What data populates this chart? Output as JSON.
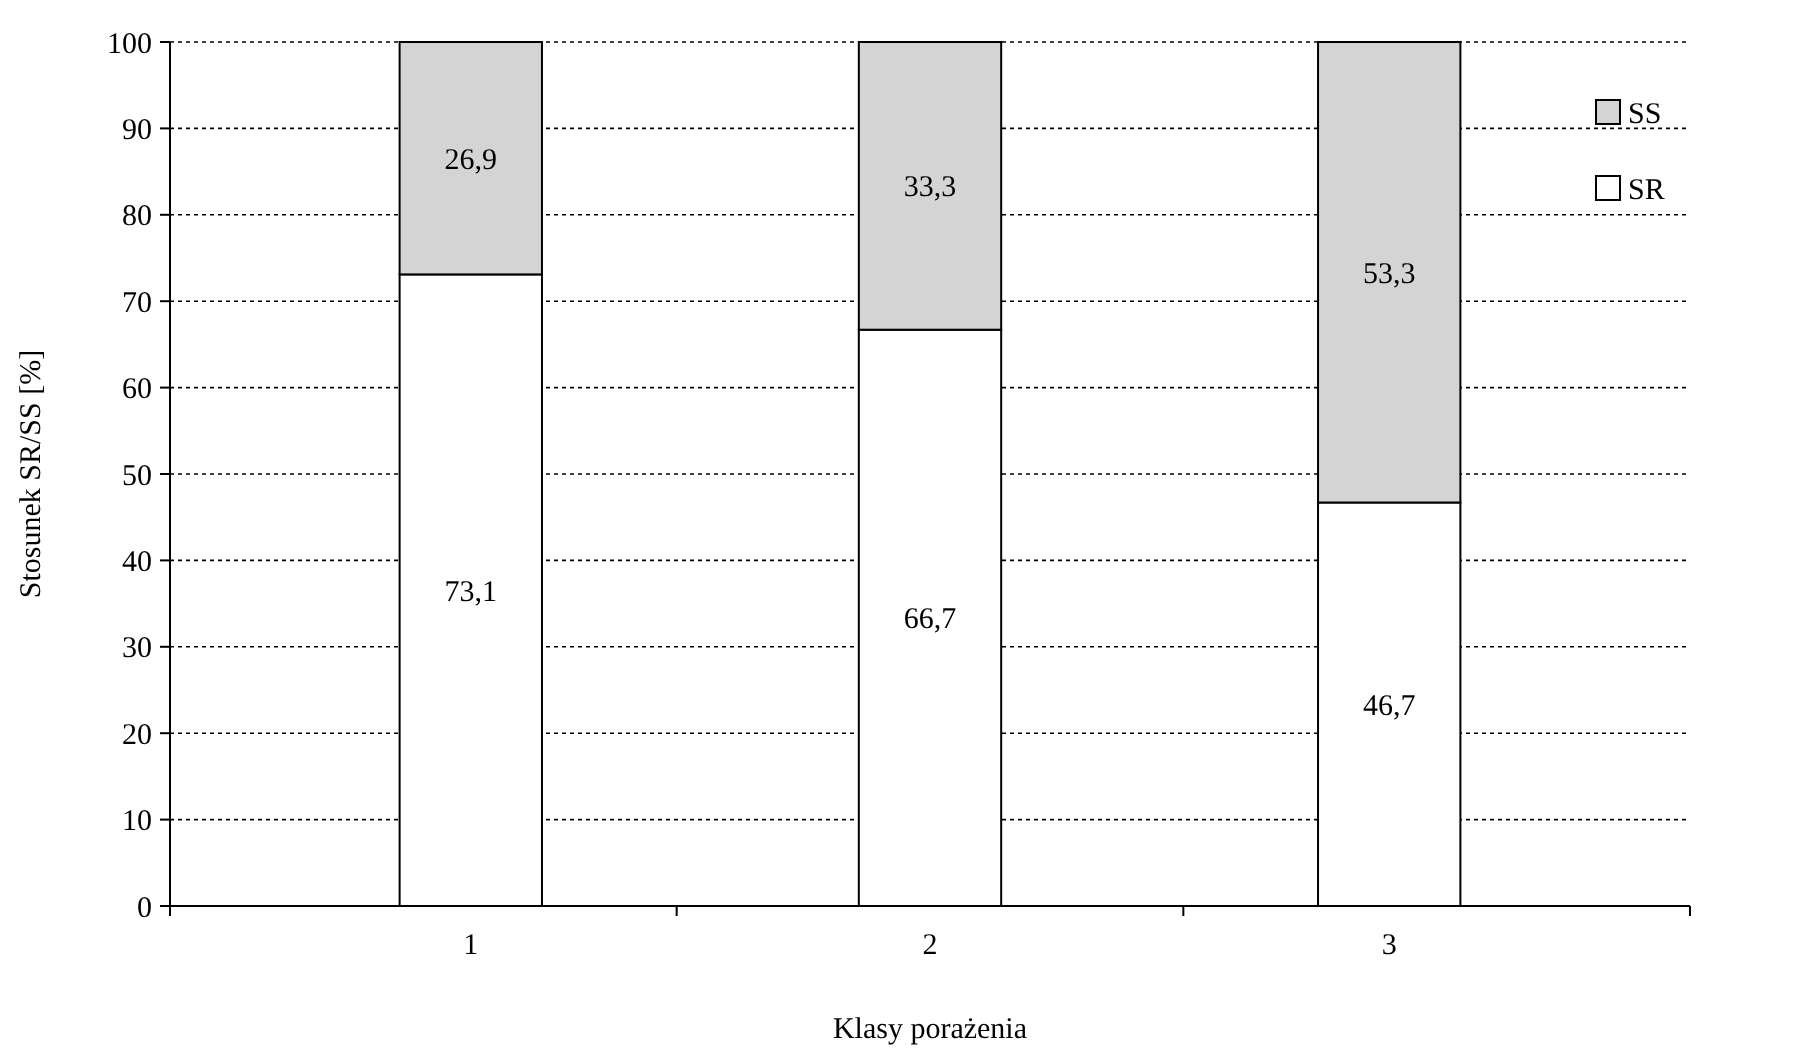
{
  "chart_data": {
    "type": "bar",
    "stacked": true,
    "xlabel": "Klasy porażenia",
    "ylabel": "Stosunek SR/SS [%]",
    "categories": [
      "1",
      "2",
      "3"
    ],
    "series": [
      {
        "name": "SR",
        "color": "#ffffff",
        "values": [
          73.1,
          66.7,
          46.7
        ],
        "value_labels": [
          "73,1",
          "66,7",
          "46,7"
        ]
      },
      {
        "name": "SS",
        "color": "#d4d4d4",
        "values": [
          26.9,
          33.3,
          53.3
        ],
        "value_labels": [
          "26,9",
          "33,3",
          "53,3"
        ]
      }
    ],
    "ylim": [
      0,
      100
    ],
    "yticks": [
      0,
      10,
      20,
      30,
      40,
      50,
      60,
      70,
      80,
      90,
      100
    ],
    "grid": "y",
    "legend": "right"
  }
}
